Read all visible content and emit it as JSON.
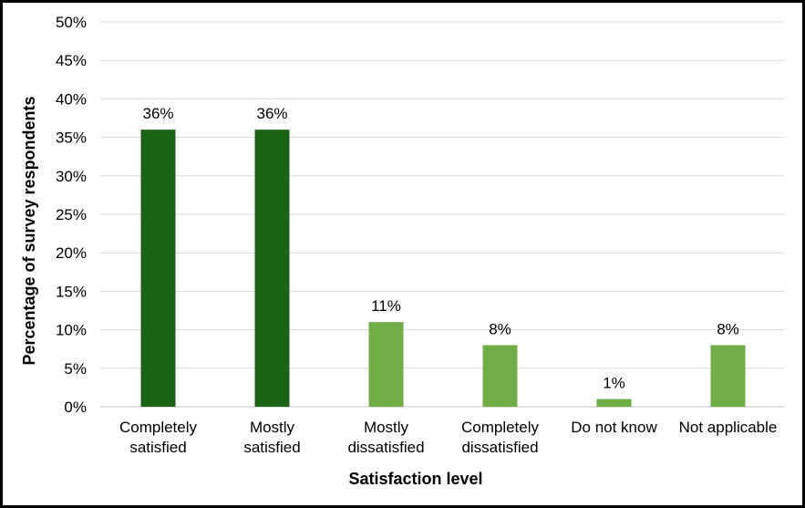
{
  "chart_data": {
    "type": "bar",
    "title": "",
    "xlabel": "Satisfaction level",
    "ylabel": "Percentage of survey respondents",
    "categories": [
      [
        "Completely",
        "satisfied"
      ],
      [
        "Mostly",
        "satisfied"
      ],
      [
        "Mostly",
        "dissatisfied"
      ],
      [
        "Completely",
        "dissatisfied"
      ],
      [
        "Do not know"
      ],
      [
        "Not applicable"
      ]
    ],
    "values": [
      36,
      36,
      11,
      8,
      1,
      8
    ],
    "data_labels": [
      "36%",
      "36%",
      "11%",
      "8%",
      "1%",
      "8%"
    ],
    "bar_colors": [
      "#1C6415",
      "#1C6415",
      "#70AD47",
      "#70AD47",
      "#70AD47",
      "#70AD47"
    ],
    "ylim": [
      0,
      50
    ],
    "yticks": [
      0,
      5,
      10,
      15,
      20,
      25,
      30,
      35,
      40,
      45,
      50
    ],
    "ytick_labels": [
      "0%",
      "5%",
      "10%",
      "15%",
      "20%",
      "25%",
      "30%",
      "35%",
      "40%",
      "45%",
      "50%"
    ],
    "grid": true,
    "legend": "none"
  }
}
